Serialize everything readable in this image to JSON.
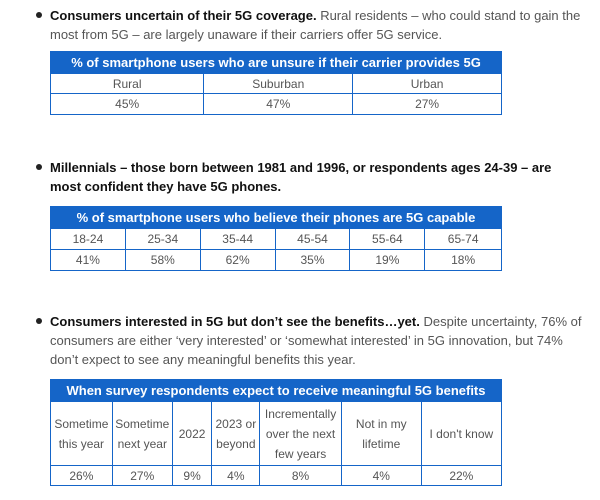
{
  "section1": {
    "lead": "Consumers uncertain of their 5G coverage.",
    "body": " Rural residents – who could stand to gain the most from 5G – are largely unaware if their carriers offer 5G service.",
    "table": {
      "title": "% of smartphone users who are unsure if their carrier provides 5G",
      "headers": [
        "Rural",
        "Suburban",
        "Urban"
      ],
      "values": [
        "45%",
        "47%",
        "27%"
      ]
    }
  },
  "section2": {
    "lead": "Millennials – those born between 1981 and 1996, or respondents ages 24-39 – are most confident they have 5G phones.",
    "table": {
      "title": "% of smartphone users who believe their phones are 5G capable",
      "headers": [
        "18-24",
        "25-34",
        "35-44",
        "45-54",
        "55-64",
        "65-74"
      ],
      "values": [
        "41%",
        "58%",
        "62%",
        "35%",
        "19%",
        "18%"
      ]
    }
  },
  "section3": {
    "lead": "Consumers interested in 5G but don’t see the benefits…yet.",
    "body": " Despite uncertainty, 76% of consumers are either ‘very interested’ or ‘somewhat interested’ in 5G innovation, but 74% don’t expect to see any meaningful benefits this year.",
    "table": {
      "title": "When survey respondents expect to receive meaningful 5G benefits",
      "headers": [
        "Sometime this year",
        "Sometime next year",
        "2022",
        "2023 or beyond",
        "Incrementally over the next few years",
        "Not in my lifetime",
        "I don't know"
      ],
      "values": [
        "26%",
        "27%",
        "9%",
        "4%",
        "8%",
        "4%",
        "22%"
      ]
    }
  }
}
